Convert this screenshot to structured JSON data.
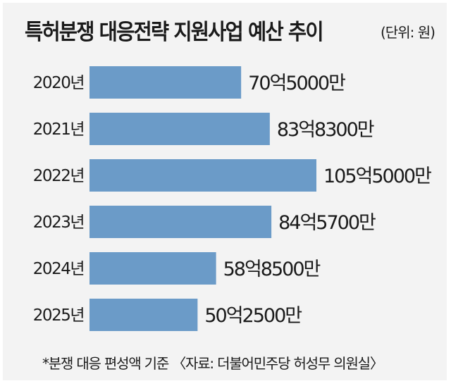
{
  "chart_data": {
    "type": "bar",
    "orientation": "horizontal",
    "title": "특허분쟁 대응전략 지원사업 예산 추이",
    "unit": "(단위: 원)",
    "categories": [
      "2020년",
      "2021년",
      "2022년",
      "2023년",
      "2024년",
      "2025년"
    ],
    "values": [
      70.5,
      83.83,
      105.5,
      84.57,
      58.85,
      50.25
    ],
    "value_unit": "억원",
    "data_labels": [
      "70억5000만",
      "83억8300만",
      "105억5000만",
      "84억5700만",
      "58억8500만",
      "50억2500만"
    ],
    "xlim": [
      0,
      105.5
    ],
    "grid": false,
    "bar_color": "#6b9bc8",
    "note": "*분쟁 대응 편성액 기준  〈자료: 더불어민주당 허성무 의원실〉"
  }
}
